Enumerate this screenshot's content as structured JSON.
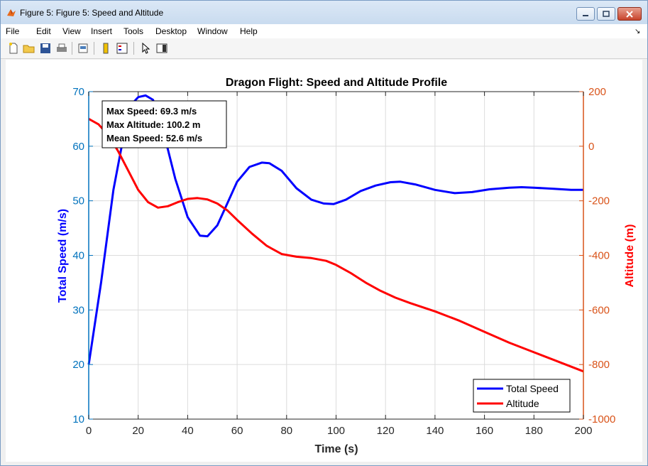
{
  "window": {
    "title": "Figure 5: Figure 5: Speed and Altitude",
    "menu": [
      "File",
      "Edit",
      "View",
      "Insert",
      "Tools",
      "Desktop",
      "Window",
      "Help"
    ]
  },
  "toolbar": {
    "icons": [
      "new-figure-icon",
      "open-file-icon",
      "save-icon",
      "print-icon",
      "print-preview-icon",
      "colorbar-icon",
      "legend-icon",
      "select-pointer-icon",
      "property-editor-icon"
    ]
  },
  "colors": {
    "speed": "#0000ff",
    "altitude": "#ff0000",
    "left_axis": "#0072bd",
    "right_axis": "#d95319"
  },
  "chart_data": {
    "type": "line",
    "title": "Dragon Flight: Speed and Altitude Profile",
    "xlabel": "Time (s)",
    "ylabel_left": "Total Speed (m/s)",
    "ylabel_right": "Altitude (m)",
    "xlim": [
      0,
      200
    ],
    "ylim_left": [
      10,
      70
    ],
    "ylim_right": [
      -1000,
      200
    ],
    "xticks": [
      0,
      20,
      40,
      60,
      80,
      100,
      120,
      140,
      160,
      180,
      200
    ],
    "yticks_left": [
      10,
      20,
      30,
      40,
      50,
      60,
      70
    ],
    "yticks_right": [
      -1000,
      -800,
      -600,
      -400,
      -200,
      0,
      200
    ],
    "grid": true,
    "legend_position": "bottom-right",
    "annotation": [
      "Max Speed: 69.3 m/s",
      "Max Altitude: 100.2 m",
      "Mean Speed: 52.6 m/s"
    ],
    "series": [
      {
        "name": "Total Speed",
        "axis": "left",
        "x": [
          0,
          5,
          10,
          15,
          18,
          20,
          23,
          26,
          30,
          35,
          40,
          45,
          48,
          52,
          56,
          60,
          65,
          70,
          73,
          78,
          84,
          90,
          95,
          99,
          104,
          110,
          116,
          122,
          126,
          132,
          140,
          148,
          155,
          162,
          170,
          175,
          180,
          188,
          195,
          200
        ],
        "y": [
          20,
          35,
          52,
          64,
          68,
          69,
          69.3,
          68.5,
          63,
          54,
          47,
          43.6,
          43.5,
          45.5,
          49.5,
          53.5,
          56.2,
          57,
          56.9,
          55.5,
          52.3,
          50.2,
          49.5,
          49.4,
          50.2,
          51.8,
          52.8,
          53.4,
          53.5,
          53,
          52,
          51.4,
          51.6,
          52.1,
          52.4,
          52.5,
          52.4,
          52.2,
          52,
          52
        ]
      },
      {
        "name": "Altitude",
        "axis": "right",
        "x": [
          0,
          4,
          8,
          12,
          16,
          20,
          24,
          28,
          32,
          36,
          40,
          44,
          48,
          52,
          56,
          60,
          66,
          72,
          78,
          84,
          90,
          96,
          100,
          106,
          112,
          118,
          124,
          130,
          140,
          150,
          160,
          170,
          180,
          190,
          200
        ],
        "y": [
          100.2,
          80,
          40,
          -20,
          -90,
          -160,
          -205,
          -225,
          -220,
          -205,
          -193,
          -190,
          -195,
          -210,
          -235,
          -270,
          -320,
          -365,
          -395,
          -405,
          -410,
          -420,
          -435,
          -465,
          -500,
          -530,
          -555,
          -575,
          -605,
          -640,
          -680,
          -720,
          -755,
          -790,
          -825
        ]
      }
    ]
  }
}
